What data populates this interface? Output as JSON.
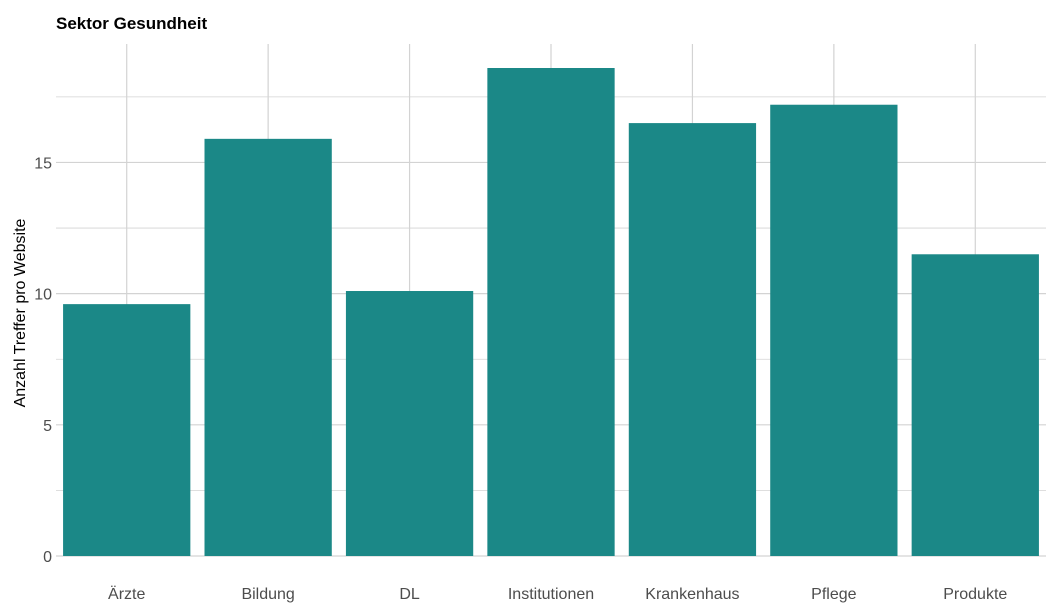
{
  "chart_data": {
    "type": "bar",
    "title": "Sektor Gesundheit",
    "ylabel": "Anzahl Treffer pro Website",
    "categories": [
      "Ärzte",
      "Bildung",
      "DL",
      "Institutionen",
      "Krankenhaus",
      "Pflege",
      "Produkte"
    ],
    "values": [
      9.6,
      15.9,
      10.1,
      18.6,
      16.5,
      17.2,
      11.5
    ],
    "ylim": [
      0,
      18.6
    ],
    "yticks": [
      0,
      5,
      10,
      15
    ],
    "grid": true,
    "legend": "none",
    "colors": {
      "bar": "#1b8887",
      "grid": "#d3d3d3",
      "tick_text": "#4d4d4d"
    }
  }
}
